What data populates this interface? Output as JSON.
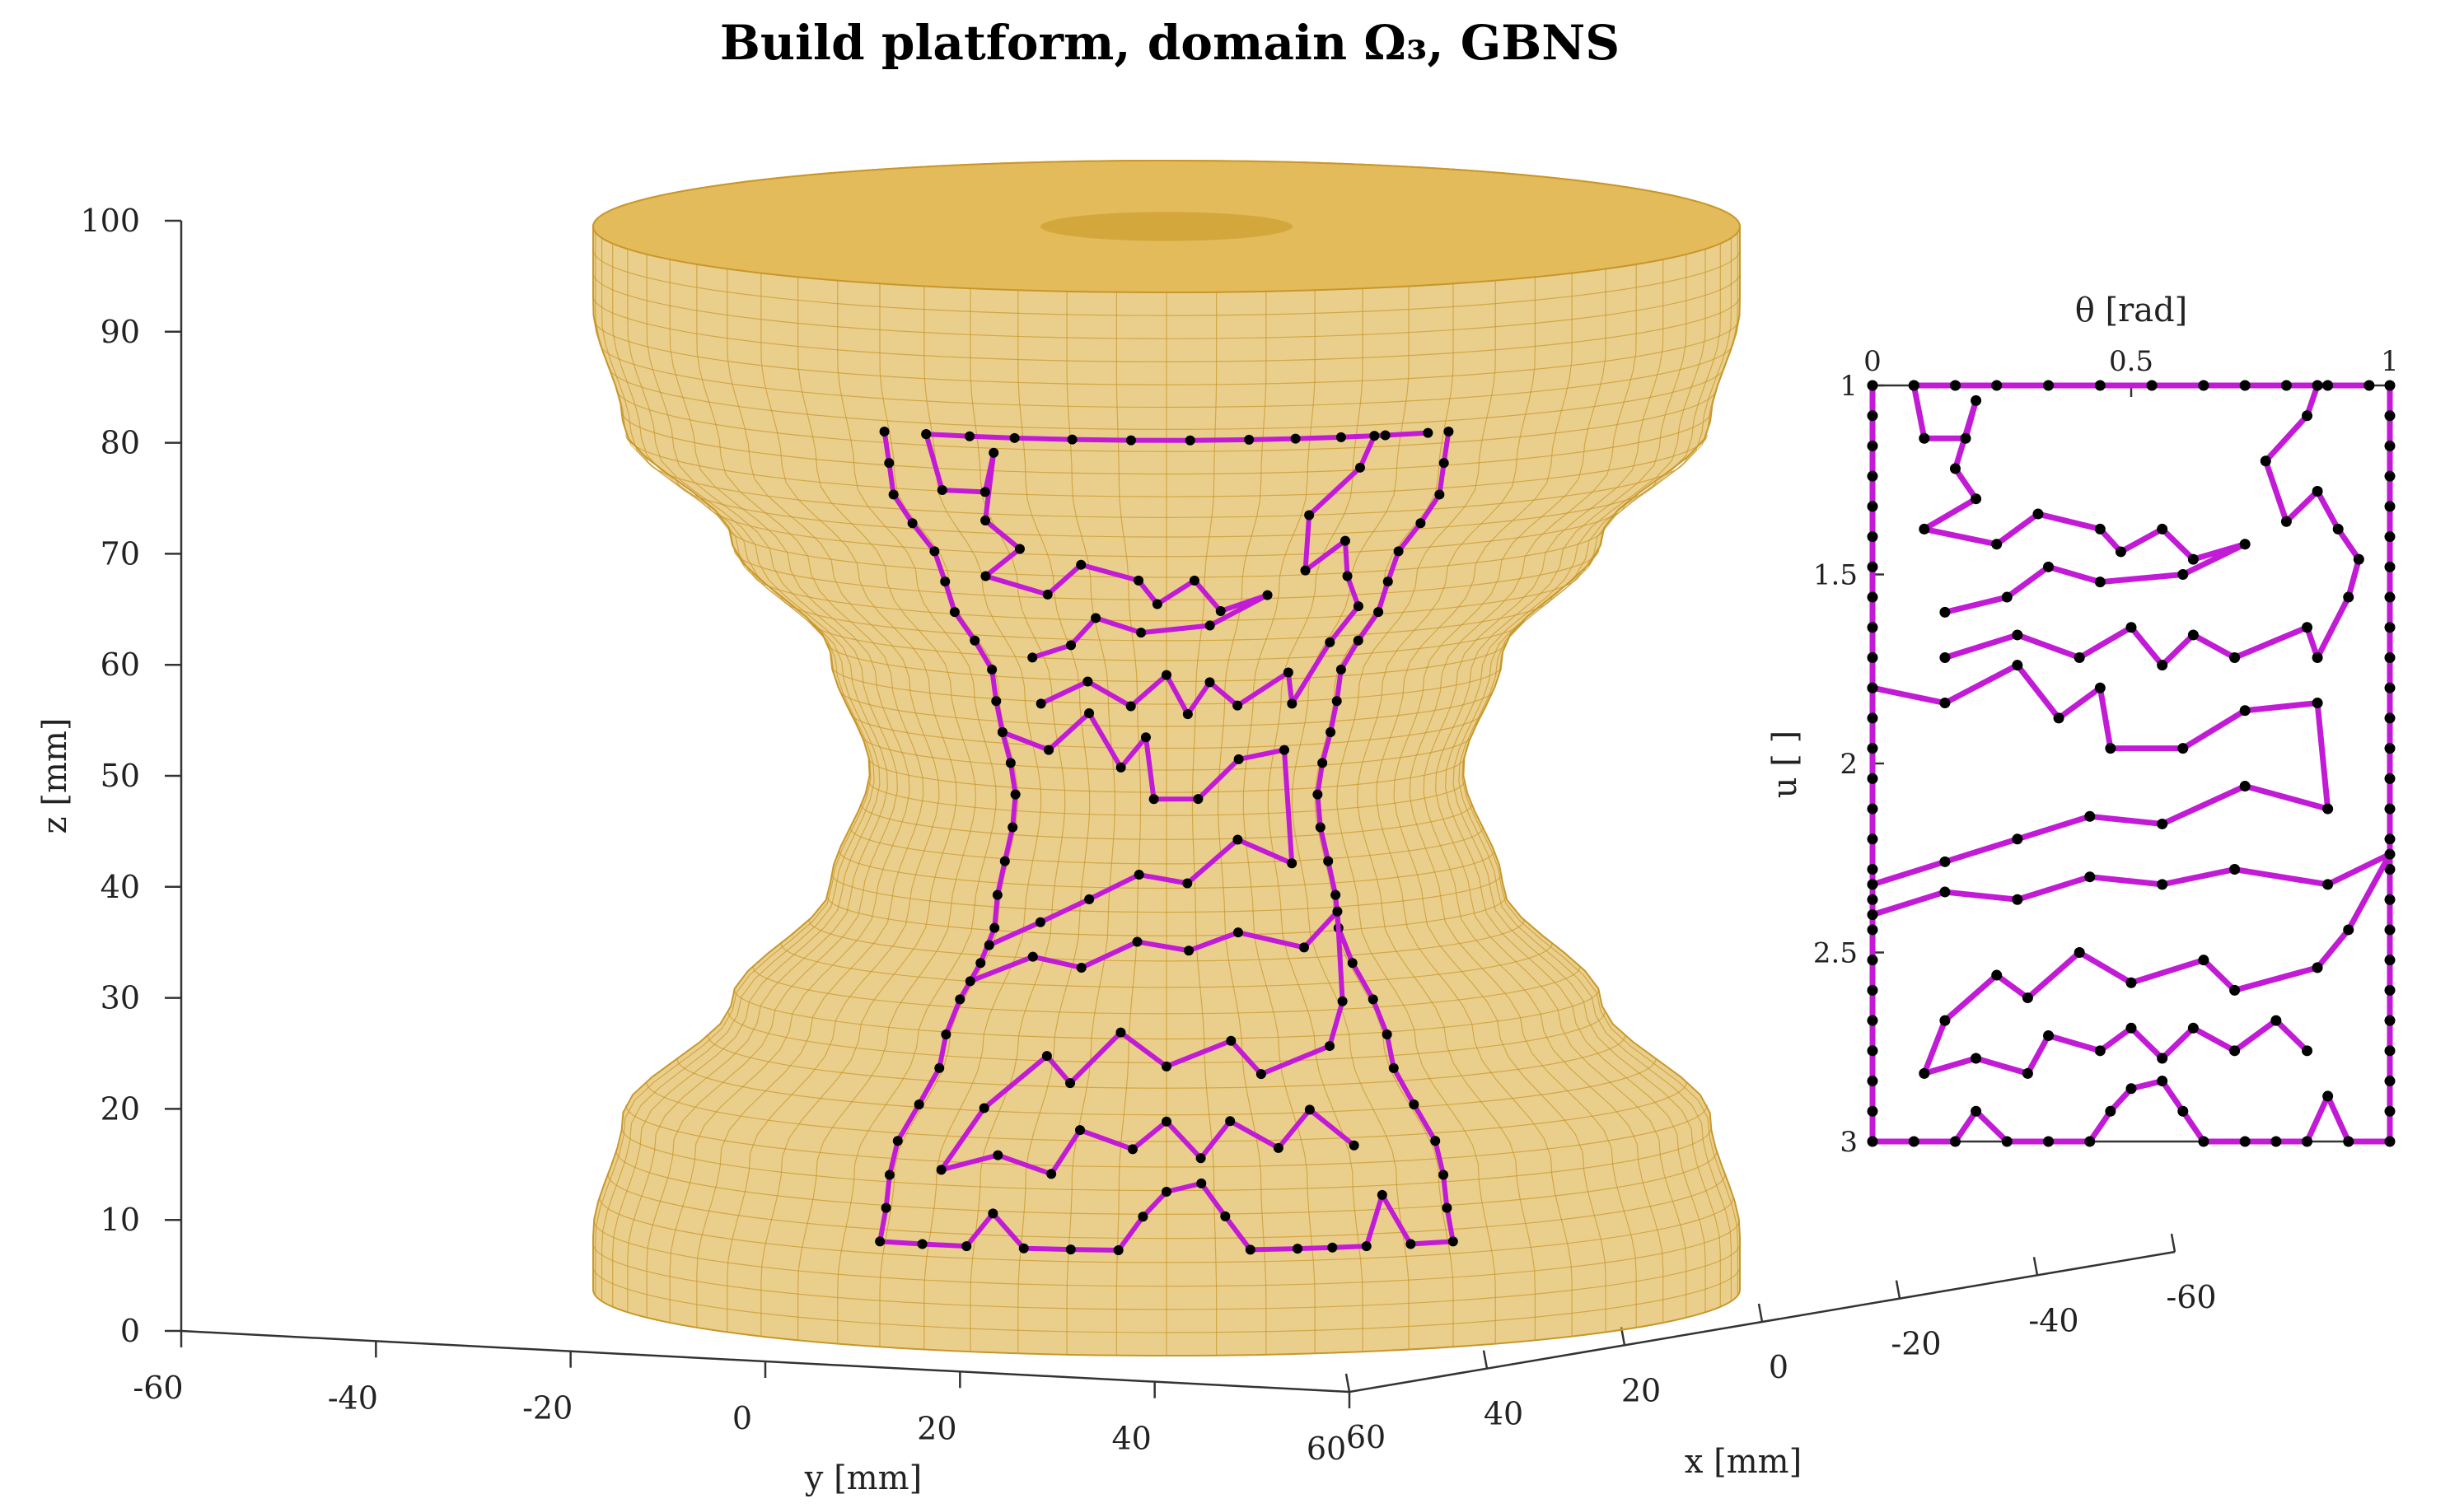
{
  "chart_data": [
    {
      "type": "surface3d",
      "title": "Build platform, domain Ω₃, GBNS",
      "xlabel": "x [mm]",
      "ylabel": "y [mm]",
      "zlabel": "z [mm]",
      "x_ticks": [
        "60",
        "40",
        "20",
        "0",
        "-20",
        "-40",
        "-60"
      ],
      "y_ticks": [
        "-60",
        "-40",
        "-20",
        "0",
        "20",
        "40",
        "60"
      ],
      "z_ticks": [
        "0",
        "10",
        "20",
        "30",
        "40",
        "50",
        "60",
        "70",
        "80",
        "90",
        "100"
      ],
      "xlim": [
        -60,
        60
      ],
      "ylim": [
        -60,
        60
      ],
      "zlim": [
        0,
        100
      ],
      "surface": {
        "shape": "hyperboloid-like spool",
        "color": "#D9A82E",
        "z_range": [
          0,
          100
        ],
        "profile": [
          {
            "z": 0,
            "r": 58
          },
          {
            "z": 10,
            "r": 58
          },
          {
            "z": 20,
            "r": 55
          },
          {
            "z": 30,
            "r": 44
          },
          {
            "z": 40,
            "r": 34
          },
          {
            "z": 50,
            "r": 30
          },
          {
            "z": 60,
            "r": 34
          },
          {
            "z": 70,
            "r": 44
          },
          {
            "z": 80,
            "r": 55
          },
          {
            "z": 90,
            "r": 58
          },
          {
            "z": 100,
            "r": 58
          }
        ]
      },
      "toolpath_color": "#C21BD6",
      "point_color": "#000000"
    },
    {
      "type": "line",
      "xlabel": "θ [rad]",
      "ylabel": "u [ ]",
      "x_ticks": [
        "0",
        "0.5",
        "1"
      ],
      "y_ticks": [
        "1",
        "1.5",
        "2",
        "2.5",
        "3"
      ],
      "xlim": [
        0,
        1
      ],
      "ylim": [
        1,
        3
      ],
      "y_reversed": true,
      "x_axis_position": "top",
      "series": [
        {
          "color": "#C21BD6",
          "marker_color": "#000000",
          "points": [
            [
              0.0,
              1.0
            ],
            [
              0.0,
              1.08
            ],
            [
              0.0,
              1.16
            ],
            [
              0.0,
              1.24
            ],
            [
              0.0,
              1.32
            ],
            [
              0.0,
              1.4
            ],
            [
              0.0,
              1.48
            ],
            [
              0.0,
              1.56
            ],
            [
              0.0,
              1.64
            ],
            [
              0.0,
              1.72
            ],
            [
              0.0,
              1.8
            ],
            [
              0.0,
              1.88
            ],
            [
              0.0,
              1.96
            ],
            [
              0.0,
              2.04
            ],
            [
              0.0,
              2.12
            ],
            [
              0.0,
              2.2
            ],
            [
              0.0,
              2.28
            ],
            [
              0.0,
              2.36
            ],
            [
              0.0,
              2.44
            ],
            [
              0.0,
              2.52
            ],
            [
              0.0,
              2.6
            ],
            [
              0.0,
              2.68
            ],
            [
              0.0,
              2.76
            ],
            [
              0.0,
              2.84
            ],
            [
              0.0,
              2.92
            ],
            [
              0.0,
              3.0
            ],
            [
              0.08,
              3.0
            ],
            [
              0.16,
              3.0
            ],
            [
              0.2,
              2.92
            ],
            [
              0.26,
              3.0
            ],
            [
              0.34,
              3.0
            ],
            [
              0.42,
              3.0
            ],
            [
              0.46,
              2.92
            ],
            [
              0.5,
              2.86
            ],
            [
              0.56,
              2.84
            ],
            [
              0.6,
              2.92
            ],
            [
              0.64,
              3.0
            ],
            [
              0.72,
              3.0
            ],
            [
              0.78,
              3.0
            ],
            [
              0.84,
              3.0
            ],
            [
              0.88,
              2.88
            ],
            [
              0.92,
              3.0
            ],
            [
              1.0,
              3.0
            ],
            [
              1.0,
              2.92
            ],
            [
              1.0,
              2.84
            ],
            [
              1.0,
              2.76
            ],
            [
              1.0,
              2.68
            ],
            [
              1.0,
              2.6
            ],
            [
              1.0,
              2.52
            ],
            [
              1.0,
              2.44
            ],
            [
              1.0,
              2.36
            ],
            [
              1.0,
              2.28
            ],
            [
              1.0,
              2.2
            ],
            [
              1.0,
              2.12
            ],
            [
              1.0,
              2.04
            ],
            [
              1.0,
              1.96
            ],
            [
              1.0,
              1.88
            ],
            [
              1.0,
              1.8
            ],
            [
              1.0,
              1.72
            ],
            [
              1.0,
              1.64
            ],
            [
              1.0,
              1.56
            ],
            [
              1.0,
              1.48
            ],
            [
              1.0,
              1.4
            ],
            [
              1.0,
              1.32
            ],
            [
              1.0,
              1.24
            ],
            [
              1.0,
              1.16
            ],
            [
              1.0,
              1.08
            ],
            [
              1.0,
              1.0
            ]
          ]
        },
        {
          "color": "#C21BD6",
          "marker_color": "#000000",
          "points": [
            [
              0.08,
              1.0
            ],
            [
              0.16,
              1.0
            ],
            [
              0.24,
              1.0
            ],
            [
              0.34,
              1.0
            ],
            [
              0.44,
              1.0
            ],
            [
              0.54,
              1.0
            ],
            [
              0.64,
              1.0
            ],
            [
              0.72,
              1.0
            ],
            [
              0.8,
              1.0
            ],
            [
              0.88,
              1.0
            ],
            [
              0.96,
              1.0
            ]
          ]
        },
        {
          "color": "#C21BD6",
          "marker_color": "#000000",
          "points": [
            [
              0.08,
              1.0
            ],
            [
              0.1,
              1.14
            ],
            [
              0.18,
              1.14
            ],
            [
              0.2,
              1.04
            ],
            [
              0.16,
              1.22
            ],
            [
              0.2,
              1.3
            ],
            [
              0.1,
              1.38
            ],
            [
              0.24,
              1.42
            ],
            [
              0.32,
              1.34
            ],
            [
              0.44,
              1.38
            ],
            [
              0.48,
              1.44
            ],
            [
              0.56,
              1.38
            ],
            [
              0.62,
              1.46
            ],
            [
              0.72,
              1.42
            ],
            [
              0.6,
              1.5
            ],
            [
              0.44,
              1.52
            ],
            [
              0.34,
              1.48
            ],
            [
              0.26,
              1.56
            ],
            [
              0.14,
              1.6
            ]
          ]
        },
        {
          "color": "#C21BD6",
          "marker_color": "#000000",
          "points": [
            [
              0.14,
              1.72
            ],
            [
              0.28,
              1.66
            ],
            [
              0.4,
              1.72
            ],
            [
              0.5,
              1.64
            ],
            [
              0.56,
              1.74
            ],
            [
              0.62,
              1.66
            ],
            [
              0.7,
              1.72
            ],
            [
              0.84,
              1.64
            ],
            [
              0.86,
              1.72
            ],
            [
              0.92,
              1.56
            ],
            [
              0.94,
              1.46
            ],
            [
              0.9,
              1.38
            ],
            [
              0.86,
              1.28
            ],
            [
              0.8,
              1.36
            ],
            [
              0.76,
              1.2
            ],
            [
              0.84,
              1.08
            ],
            [
              0.86,
              1.0
            ]
          ]
        },
        {
          "color": "#C21BD6",
          "marker_color": "#000000",
          "points": [
            [
              0.0,
              1.8
            ],
            [
              0.14,
              1.84
            ],
            [
              0.28,
              1.74
            ],
            [
              0.36,
              1.88
            ],
            [
              0.44,
              1.8
            ],
            [
              0.46,
              1.96
            ],
            [
              0.6,
              1.96
            ],
            [
              0.72,
              1.86
            ],
            [
              0.86,
              1.84
            ],
            [
              0.88,
              2.12
            ],
            [
              0.72,
              2.06
            ],
            [
              0.56,
              2.16
            ],
            [
              0.42,
              2.14
            ],
            [
              0.28,
              2.2
            ],
            [
              0.14,
              2.26
            ],
            [
              0.0,
              2.32
            ]
          ]
        },
        {
          "color": "#C21BD6",
          "marker_color": "#000000",
          "points": [
            [
              0.0,
              2.4
            ],
            [
              0.14,
              2.34
            ],
            [
              0.28,
              2.36
            ],
            [
              0.42,
              2.3
            ],
            [
              0.56,
              2.32
            ],
            [
              0.7,
              2.28
            ],
            [
              0.88,
              2.32
            ],
            [
              1.0,
              2.24
            ],
            [
              0.92,
              2.44
            ],
            [
              0.86,
              2.54
            ],
            [
              0.7,
              2.6
            ],
            [
              0.64,
              2.52
            ],
            [
              0.5,
              2.58
            ],
            [
              0.4,
              2.5
            ],
            [
              0.3,
              2.62
            ],
            [
              0.24,
              2.56
            ],
            [
              0.14,
              2.68
            ],
            [
              0.1,
              2.82
            ],
            [
              0.2,
              2.78
            ],
            [
              0.3,
              2.82
            ],
            [
              0.34,
              2.72
            ],
            [
              0.44,
              2.76
            ],
            [
              0.5,
              2.7
            ],
            [
              0.56,
              2.78
            ],
            [
              0.62,
              2.7
            ],
            [
              0.7,
              2.76
            ],
            [
              0.78,
              2.68
            ],
            [
              0.84,
              2.76
            ]
          ]
        }
      ]
    }
  ]
}
